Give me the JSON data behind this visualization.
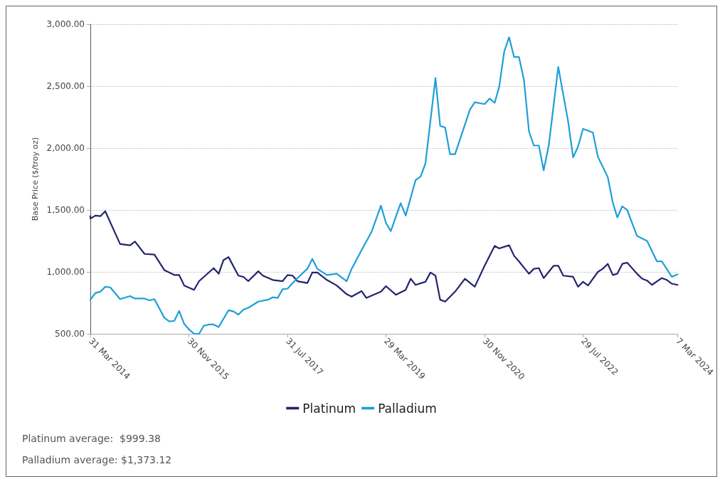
{
  "chart_data": {
    "type": "line",
    "ylabel": "Base Price ($/troy oz)",
    "legend": "bottom",
    "grid": "y",
    "marker": "none",
    "line_style": "solid",
    "xlim": [
      "2014-03-31",
      "2024-03-07"
    ],
    "xticks": [
      {
        "value": "2014-03-31",
        "label": "31 Mar 2014"
      },
      {
        "value": "2015-11-30",
        "label": "30 Nov 2015"
      },
      {
        "value": "2017-07-31",
        "label": "31 Jul 2017"
      },
      {
        "value": "2019-03-29",
        "label": "29 Mar 2019"
      },
      {
        "value": "2020-11-30",
        "label": "30 Nov 2020"
      },
      {
        "value": "2022-07-29",
        "label": "29 Jul 2022"
      },
      {
        "value": "2024-03-07",
        "label": "7 Mar 2024"
      }
    ],
    "ylim": [
      500,
      3000
    ],
    "yticks": [
      {
        "value": 500,
        "label": "500.00"
      },
      {
        "value": 1000,
        "label": "1,000.00"
      },
      {
        "value": 1500,
        "label": "1,500.00"
      },
      {
        "value": 2000,
        "label": "2,000.00"
      },
      {
        "value": 2500,
        "label": "2,500.00"
      },
      {
        "value": 3000,
        "label": "3,000.00"
      }
    ],
    "annotations": [
      "Platinum average:  $999.38",
      "Palladium average: $1,373.12"
    ],
    "series": [
      {
        "name": "Platinum",
        "color": "#23236e",
        "x": [
          "2014-03-31",
          "2014-04",
          "2014-05",
          "2014-06",
          "2014-07",
          "2014-10",
          "2014-12",
          "2015-01",
          "2015-03",
          "2015-05",
          "2015-07",
          "2015-09",
          "2015-10",
          "2015-11",
          "2016-01",
          "2016-02",
          "2016-05",
          "2016-06",
          "2016-07",
          "2016-08",
          "2016-10",
          "2016-11",
          "2016-12",
          "2017-02",
          "2017-03",
          "2017-05",
          "2017-07",
          "2017-08",
          "2017-09",
          "2017-10",
          "2017-12",
          "2018-01",
          "2018-02",
          "2018-04",
          "2018-06",
          "2018-08",
          "2018-09",
          "2018-11",
          "2018-12",
          "2019-03",
          "2019-04",
          "2019-06",
          "2019-08",
          "2019-09",
          "2019-10",
          "2019-12",
          "2020-01",
          "2020-02",
          "2020-03",
          "2020-04",
          "2020-06",
          "2020-08",
          "2020-10",
          "2020-12",
          "2021-02",
          "2021-03",
          "2021-05",
          "2021-06",
          "2021-07",
          "2021-09",
          "2021-10",
          "2021-11",
          "2021-12",
          "2022-02",
          "2022-03",
          "2022-04",
          "2022-06",
          "2022-07",
          "2022-08",
          "2022-09",
          "2022-11",
          "2022-12",
          "2023-01",
          "2023-02",
          "2023-03",
          "2023-04",
          "2023-05",
          "2023-07",
          "2023-08",
          "2023-09",
          "2023-10",
          "2023-12",
          "2024-01",
          "2024-02",
          "2024-03-07"
        ],
        "values": [
          1450,
          1430,
          1455,
          1450,
          1490,
          1225,
          1215,
          1245,
          1145,
          1140,
          1015,
          975,
          975,
          890,
          855,
          925,
          1030,
          985,
          1095,
          1120,
          970,
          960,
          925,
          1005,
          970,
          935,
          925,
          975,
          970,
          925,
          910,
          995,
          995,
          935,
          890,
          820,
          800,
          845,
          790,
          840,
          885,
          815,
          855,
          945,
          895,
          920,
          995,
          970,
          775,
          760,
          840,
          945,
          880,
          1050,
          1210,
          1190,
          1215,
          1130,
          1085,
          985,
          1025,
          1030,
          950,
          1050,
          1050,
          970,
          960,
          880,
          920,
          890,
          1000,
          1025,
          1065,
          975,
          985,
          1065,
          1075,
          985,
          945,
          930,
          895,
          950,
          935,
          905,
          895
        ]
      },
      {
        "name": "Palladium",
        "color": "#1e9fd8",
        "x": [
          "2014-03-31",
          "2014-05",
          "2014-06",
          "2014-07",
          "2014-08",
          "2014-10",
          "2014-12",
          "2015-01",
          "2015-03",
          "2015-04",
          "2015-05",
          "2015-07",
          "2015-08",
          "2015-09",
          "2015-10",
          "2015-11",
          "2015-12",
          "2016-01",
          "2016-02",
          "2016-03",
          "2016-04",
          "2016-05",
          "2016-06",
          "2016-08",
          "2016-09",
          "2016-10",
          "2016-11",
          "2016-12",
          "2017-02",
          "2017-04",
          "2017-05",
          "2017-06",
          "2017-07",
          "2017-08",
          "2017-09",
          "2017-10",
          "2017-12",
          "2018-01",
          "2018-02",
          "2018-04",
          "2018-06",
          "2018-08",
          "2018-09",
          "2018-11",
          "2019-01",
          "2019-03",
          "2019-04",
          "2019-05",
          "2019-07",
          "2019-08",
          "2019-10",
          "2019-11",
          "2019-12",
          "2020-02",
          "2020-03",
          "2020-04",
          "2020-05",
          "2020-06",
          "2020-09",
          "2020-10",
          "2020-12",
          "2021-01",
          "2021-02",
          "2021-03",
          "2021-04",
          "2021-05",
          "2021-06",
          "2021-07",
          "2021-08",
          "2021-09",
          "2021-10",
          "2021-11",
          "2021-12",
          "2022-01",
          "2022-03",
          "2022-05",
          "2022-06",
          "2022-07",
          "2022-08",
          "2022-10",
          "2022-11",
          "2023-01",
          "2023-02",
          "2023-03",
          "2023-04",
          "2023-05",
          "2023-07",
          "2023-09",
          "2023-11",
          "2023-12",
          "2024-02",
          "2024-03-07"
        ],
        "values": [
          775,
          830,
          840,
          880,
          875,
          780,
          805,
          785,
          785,
          770,
          780,
          630,
          600,
          605,
          685,
          580,
          535,
          500,
          500,
          565,
          575,
          575,
          555,
          690,
          680,
          655,
          695,
          710,
          760,
          775,
          795,
          790,
          860,
          865,
          910,
          950,
          1025,
          1105,
          1025,
          975,
          985,
          925,
          1025,
          1175,
          1320,
          1535,
          1395,
          1330,
          1555,
          1455,
          1740,
          1770,
          1875,
          2565,
          2180,
          2165,
          1950,
          1950,
          2310,
          2370,
          2355,
          2400,
          2365,
          2495,
          2780,
          2895,
          2735,
          2735,
          2550,
          2135,
          2020,
          2020,
          1820,
          2020,
          2655,
          2215,
          1925,
          2010,
          2155,
          2125,
          1930,
          1765,
          1560,
          1440,
          1530,
          1500,
          1290,
          1250,
          1085,
          1085,
          960,
          980
        ]
      }
    ]
  }
}
